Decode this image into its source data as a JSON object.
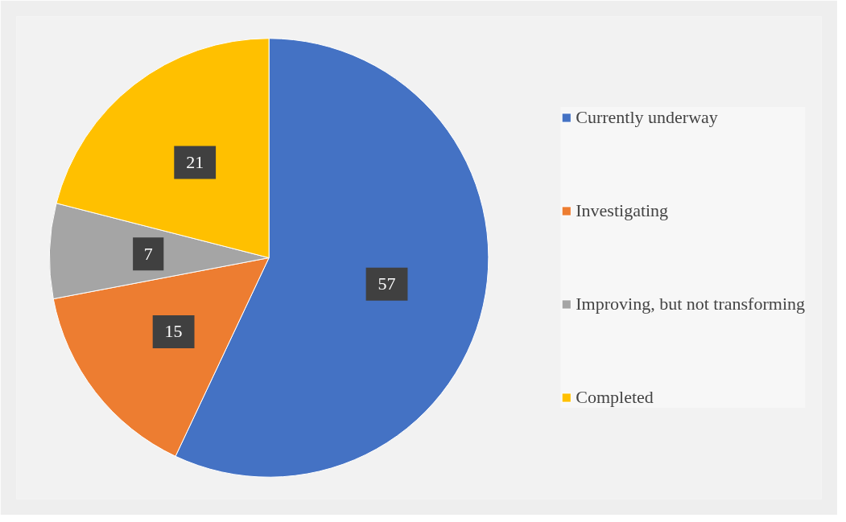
{
  "chart_data": {
    "type": "pie",
    "categories": [
      "Currently underway",
      "Investigating",
      "Improving, but not transforming",
      "Completed"
    ],
    "values": [
      57,
      15,
      7,
      21
    ],
    "colors": [
      "#4472c4",
      "#ed7d31",
      "#a5a5a5",
      "#ffc000"
    ],
    "data_labels": true,
    "legend": "right"
  }
}
